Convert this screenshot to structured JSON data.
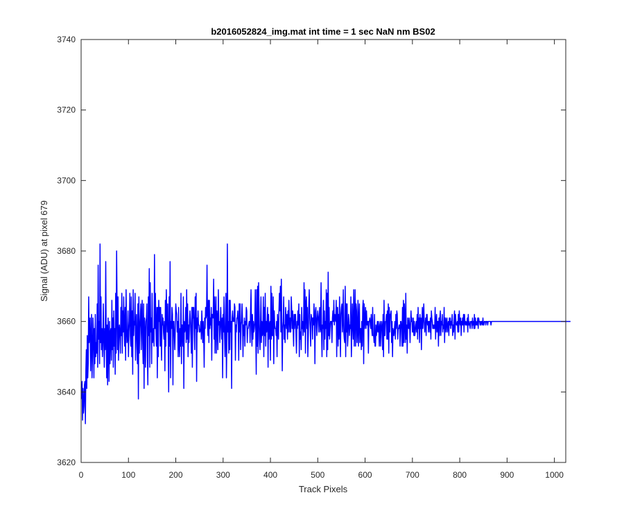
{
  "chart_data": {
    "type": "line",
    "title": "b2016052824_img.mat int time = 1 sec  NaN nm BS02",
    "xlabel": "Track Pixels",
    "ylabel": "Signal (ADU) at pixel 679",
    "xlim": [
      0,
      1024
    ],
    "ylim": [
      3620,
      3740
    ],
    "xticks": [
      0,
      100,
      200,
      300,
      400,
      500,
      600,
      700,
      800,
      900,
      1000
    ],
    "yticks": [
      3620,
      3640,
      3660,
      3680,
      3700,
      3720,
      3740
    ],
    "grid": false,
    "box": true,
    "series": [
      {
        "color": "#0000ff",
        "x_start": 1,
        "x_step": 1,
        "values": [
          3638,
          3643,
          3632,
          3641,
          3634,
          3636,
          3642,
          3643,
          3631,
          3646,
          3652,
          3641,
          3656,
          3644,
          3648,
          3667,
          3654,
          3658,
          3661,
          3646,
          3655,
          3662,
          3644,
          3650,
          3661,
          3657,
          3644,
          3658,
          3648,
          3662,
          3650,
          3654,
          3651,
          3665,
          3647,
          3676,
          3655,
          3660,
          3648,
          3682,
          3654,
          3667,
          3652,
          3658,
          3650,
          3655,
          3665,
          3654,
          3647,
          3658,
          3652,
          3677,
          3656,
          3644,
          3659,
          3642,
          3661,
          3655,
          3643,
          3660,
          3648,
          3657,
          3658,
          3649,
          3666,
          3652,
          3661,
          3647,
          3663,
          3653,
          3658,
          3645,
          3668,
          3651,
          3680,
          3664,
          3652,
          3667,
          3649,
          3657,
          3659,
          3656,
          3651,
          3664,
          3656,
          3668,
          3651,
          3663,
          3657,
          3667,
          3658,
          3653,
          3664,
          3649,
          3669,
          3658,
          3654,
          3655,
          3663,
          3650,
          3657,
          3660,
          3668,
          3656,
          3653,
          3667,
          3650,
          3663,
          3645,
          3669,
          3656,
          3660,
          3659,
          3668,
          3649,
          3660,
          3662,
          3653,
          3648,
          3665,
          3638,
          3667,
          3651,
          3658,
          3661,
          3665,
          3652,
          3661,
          3666,
          3654,
          3648,
          3665,
          3641,
          3661,
          3657,
          3647,
          3660,
          3661,
          3665,
          3650,
          3642,
          3667,
          3656,
          3675,
          3647,
          3671,
          3657,
          3661,
          3648,
          3668,
          3654,
          3657,
          3658,
          3653,
          3679,
          3658,
          3668,
          3658,
          3653,
          3664,
          3644,
          3664,
          3650,
          3666,
          3660,
          3664,
          3653,
          3664,
          3655,
          3649,
          3662,
          3659,
          3661,
          3657,
          3655,
          3660,
          3646,
          3666,
          3653,
          3669,
          3662,
          3657,
          3665,
          3655,
          3640,
          3667,
          3653,
          3677,
          3644,
          3660,
          3658,
          3664,
          3662,
          3642,
          3660,
          3660,
          3656,
          3652,
          3658,
          3665,
          3663,
          3662,
          3657,
          3660,
          3650,
          3664,
          3654,
          3650,
          3658,
          3653,
          3668,
          3648,
          3659,
          3659,
          3653,
          3667,
          3641,
          3660,
          3657,
          3658,
          3664,
          3654,
          3669,
          3655,
          3665,
          3650,
          3659,
          3654,
          3660,
          3663,
          3660,
          3656,
          3651,
          3664,
          3647,
          3664,
          3661,
          3664,
          3657,
          3652,
          3667,
          3658,
          3668,
          3643,
          3661,
          3657,
          3663,
          3659,
          3659,
          3657,
          3657,
          3658,
          3660,
          3655,
          3663,
          3659,
          3654,
          3660,
          3656,
          3647,
          3661,
          3658,
          3664,
          3661,
          3662,
          3676,
          3659,
          3656,
          3666,
          3654,
          3666,
          3658,
          3661,
          3659,
          3664,
          3649,
          3662,
          3662,
          3661,
          3672,
          3655,
          3667,
          3651,
          3661,
          3667,
          3651,
          3663,
          3661,
          3652,
          3669,
          3659,
          3660,
          3654,
          3659,
          3664,
          3659,
          3655,
          3661,
          3644,
          3662,
          3657,
          3667,
          3657,
          3650,
          3658,
          3668,
          3644,
          3655,
          3682,
          3657,
          3660,
          3651,
          3666,
          3652,
          3666,
          3657,
          3660,
          3641,
          3661,
          3663,
          3660,
          3661,
          3660,
          3665,
          3664,
          3649,
          3659,
          3657,
          3661,
          3661,
          3663,
          3659,
          3649,
          3665,
          3657,
          3665,
          3652,
          3659,
          3660,
          3665,
          3660,
          3650,
          3659,
          3656,
          3661,
          3653,
          3660,
          3659,
          3664,
          3663,
          3654,
          3658,
          3658,
          3659,
          3660,
          3660,
          3654,
          3663,
          3669,
          3658,
          3653,
          3662,
          3655,
          3660,
          3657,
          3658,
          3660,
          3669,
          3656,
          3645,
          3669,
          3653,
          3670,
          3651,
          3671,
          3663,
          3655,
          3652,
          3659,
          3667,
          3654,
          3660,
          3656,
          3657,
          3667,
          3650,
          3664,
          3656,
          3668,
          3653,
          3660,
          3657,
          3660,
          3664,
          3647,
          3662,
          3655,
          3659,
          3660,
          3649,
          3670,
          3655,
          3668,
          3656,
          3656,
          3667,
          3648,
          3663,
          3659,
          3658,
          3658,
          3656,
          3660,
          3650,
          3662,
          3658,
          3655,
          3663,
          3668,
          3663,
          3670,
          3657,
          3672,
          3659,
          3646,
          3658,
          3660,
          3667,
          3655,
          3659,
          3654,
          3664,
          3661,
          3658,
          3662,
          3655,
          3663,
          3657,
          3666,
          3661,
          3657,
          3661,
          3657,
          3667,
          3663,
          3658,
          3663,
          3658,
          3653,
          3662,
          3658,
          3662,
          3662,
          3656,
          3651,
          3660,
          3658,
          3663,
          3659,
          3665,
          3650,
          3662,
          3655,
          3657,
          3652,
          3664,
          3658,
          3660,
          3656,
          3659,
          3671,
          3657,
          3669,
          3651,
          3665,
          3667,
          3658,
          3664,
          3650,
          3656,
          3664,
          3669,
          3661,
          3658,
          3653,
          3662,
          3661,
          3661,
          3655,
          3661,
          3659,
          3665,
          3660,
          3648,
          3663,
          3664,
          3660,
          3656,
          3661,
          3663,
          3661,
          3657,
          3661,
          3664,
          3657,
          3658,
          3671,
          3657,
          3650,
          3659,
          3658,
          3666,
          3652,
          3663,
          3655,
          3660,
          3658,
          3669,
          3650,
          3668,
          3652,
          3674,
          3656,
          3664,
          3655,
          3658,
          3660,
          3660,
          3660,
          3654,
          3661,
          3663,
          3660,
          3666,
          3659,
          3662,
          3661,
          3660,
          3666,
          3650,
          3664,
          3664,
          3653,
          3662,
          3655,
          3667,
          3659,
          3650,
          3662,
          3664,
          3665,
          3657,
          3660,
          3669,
          3657,
          3655,
          3654,
          3670,
          3650,
          3665,
          3657,
          3665,
          3653,
          3656,
          3662,
          3660,
          3656,
          3659,
          3658,
          3667,
          3650,
          3656,
          3665,
          3659,
          3655,
          3669,
          3653,
          3660,
          3669,
          3653,
          3665,
          3663,
          3654,
          3658,
          3666,
          3653,
          3660,
          3665,
          3654,
          3658,
          3658,
          3652,
          3660,
          3653,
          3664,
          3666,
          3648,
          3665,
          3658,
          3660,
          3664,
          3658,
          3663,
          3659,
          3660,
          3660,
          3651,
          3660,
          3660,
          3661,
          3659,
          3658,
          3662,
          3658,
          3656,
          3664,
          3656,
          3656,
          3654,
          3662,
          3653,
          3653,
          3659,
          3656,
          3658,
          3660,
          3657,
          3660,
          3658,
          3653,
          3659,
          3660,
          3653,
          3658,
          3660,
          3658,
          3652,
          3662,
          3650,
          3666,
          3656,
          3656,
          3660,
          3660,
          3662,
          3655,
          3663,
          3655,
          3665,
          3651,
          3664,
          3657,
          3662,
          3662,
          3663,
          3654,
          3660,
          3650,
          3658,
          3657,
          3656,
          3658,
          3660,
          3655,
          3662,
          3658,
          3663,
          3662,
          3655,
          3658,
          3658,
          3659,
          3659,
          3653,
          3660,
          3660,
          3658,
          3653,
          3664,
          3653,
          3666,
          3654,
          3665,
          3660,
          3654,
          3668,
          3655,
          3659,
          3651,
          3661,
          3659,
          3658,
          3661,
          3659,
          3654,
          3659,
          3663,
          3660,
          3661,
          3657,
          3657,
          3661,
          3656,
          3660,
          3656,
          3657,
          3659,
          3660,
          3657,
          3662,
          3655,
          3664,
          3658,
          3661,
          3654,
          3662,
          3658,
          3661,
          3652,
          3659,
          3664,
          3658,
          3661,
          3665,
          3660,
          3657,
          3659,
          3661,
          3656,
          3662,
          3662,
          3659,
          3660,
          3657,
          3660,
          3660,
          3657,
          3661,
          3655,
          3663,
          3661,
          3660,
          3658,
          3659,
          3658,
          3659,
          3658,
          3664,
          3655,
          3660,
          3662,
          3657,
          3660,
          3660,
          3653,
          3661,
          3656,
          3661,
          3663,
          3656,
          3660,
          3659,
          3662,
          3657,
          3659,
          3658,
          3664,
          3654,
          3661,
          3661,
          3657,
          3660,
          3661,
          3657,
          3659,
          3660,
          3656,
          3661,
          3659,
          3661,
          3658,
          3660,
          3659,
          3662,
          3656,
          3659,
          3657,
          3661,
          3663,
          3655,
          3662,
          3660,
          3659,
          3659,
          3660,
          3657,
          3662,
          3657,
          3663,
          3660,
          3659,
          3661,
          3656,
          3660,
          3659,
          3661,
          3659,
          3662,
          3657,
          3662,
          3660,
          3659,
          3660,
          3659,
          3659,
          3661,
          3657,
          3662,
          3659,
          3660,
          3659,
          3658,
          3660,
          3660,
          3660,
          3658,
          3661,
          3659,
          3660,
          3658,
          3662,
          3658,
          3661,
          3659,
          3660,
          3659,
          3659,
          3661,
          3658,
          3661,
          3660,
          3660,
          3659,
          3660,
          3659,
          3660,
          3660,
          3659,
          3661,
          3659,
          3659,
          3660,
          3660,
          3660,
          3659,
          3660,
          3660,
          3660,
          3659,
          3660,
          3660,
          3660,
          3660,
          3660,
          3660,
          3659,
          3660,
          3660,
          3660,
          3660,
          3660,
          3660,
          3660,
          3660,
          3660,
          3660,
          3660,
          3660,
          3660,
          3660,
          3660,
          3660,
          3660,
          3660,
          3660,
          3660,
          3660,
          3660,
          3660,
          3660,
          3660,
          3660,
          3660,
          3660,
          3660,
          3660,
          3660,
          3660,
          3660,
          3660,
          3660,
          3660,
          3660,
          3660,
          3660,
          3660,
          3660,
          3660,
          3660,
          3660,
          3660,
          3660,
          3660,
          3660,
          3660,
          3660,
          3660,
          3660,
          3660,
          3660,
          3660,
          3660,
          3660,
          3660,
          3660,
          3660,
          3660,
          3660,
          3660,
          3660,
          3660,
          3660,
          3660,
          3660,
          3660,
          3660,
          3660,
          3660,
          3660,
          3660,
          3660,
          3660,
          3660,
          3660,
          3660,
          3660,
          3660,
          3660,
          3660,
          3660,
          3660,
          3660,
          3660,
          3660,
          3660,
          3660,
          3660,
          3660,
          3660,
          3660,
          3660,
          3660,
          3660,
          3660,
          3660,
          3660,
          3660,
          3660,
          3660,
          3660,
          3660,
          3660,
          3660,
          3660,
          3660,
          3660,
          3660,
          3660,
          3660,
          3660,
          3660,
          3660,
          3660,
          3660,
          3660,
          3660,
          3660,
          3660,
          3660,
          3660,
          3660,
          3660,
          3660,
          3660,
          3660,
          3660,
          3660,
          3660,
          3660,
          3660,
          3660,
          3660,
          3660,
          3660,
          3660,
          3660,
          3660,
          3660,
          3660,
          3660,
          3660,
          3660,
          3660,
          3660,
          3660,
          3660,
          3660,
          3660,
          3660,
          3660,
          3660,
          3660,
          3660,
          3660,
          3660,
          3660,
          3660,
          3660,
          3660,
          3660,
          3660,
          3660,
          3660,
          3660
        ]
      }
    ]
  }
}
